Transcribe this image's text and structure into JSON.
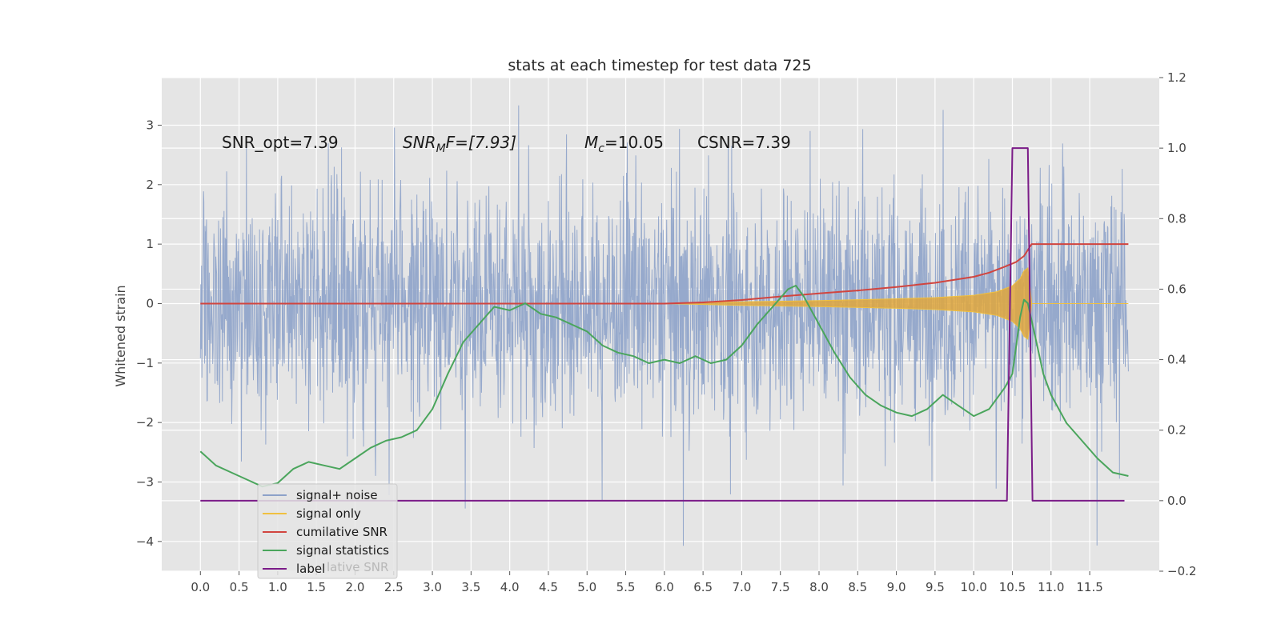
{
  "chart_data": {
    "type": "line",
    "title": "stats at each timestep for test data 725",
    "ylabel": "Whitened strain",
    "xlabel": "",
    "xlim": [
      -0.5,
      12.4
    ],
    "ylim": [
      -4.5,
      3.8
    ],
    "y2lim": [
      -0.2,
      1.2
    ],
    "grid": true,
    "legend_position": "lower-left",
    "x_ticks": [
      "0.0",
      "0.5",
      "1.0",
      "1.5",
      "2.0",
      "2.5",
      "3.0",
      "3.5",
      "4.0",
      "4.5",
      "5.0",
      "5.5",
      "6.0",
      "6.5",
      "7.0",
      "7.5",
      "8.0",
      "8.5",
      "9.0",
      "9.5",
      "10.0",
      "10.5",
      "11.0",
      "11.5"
    ],
    "y_ticks": [
      "3",
      "2",
      "1",
      "0",
      "−1",
      "−2",
      "−3",
      "−4"
    ],
    "y2_ticks": [
      "1.2",
      "1.0",
      "0.8",
      "0.6",
      "0.4",
      "0.2",
      "0.0",
      "−0.2"
    ],
    "annotations": {
      "snr_opt": "SNR_opt=7.39",
      "snr_mf_main": "SNR",
      "snr_mf_sub": "M",
      "snr_mf_rest": "F=[7.93]",
      "mc_main": "M",
      "mc_sub": "c",
      "mc_rest": "=10.05",
      "csnr": "CSNR=7.39"
    },
    "legend": [
      {
        "label": "signal+ noise",
        "color": "#8da2c9"
      },
      {
        "label": "signal only",
        "color": "#f0c040"
      },
      {
        "label": "cumilative SNR",
        "color": "#d1453f"
      },
      {
        "label": "signal statistics",
        "color": "#4aa55c"
      },
      {
        "label": "label",
        "color": "#7b1c88"
      }
    ],
    "legend_ghost": "lative SNR",
    "series": [
      {
        "name": "cumilative SNR",
        "axis": "left",
        "color": "#d1453f",
        "x": [
          0.0,
          6.0,
          6.5,
          7.0,
          7.5,
          8.0,
          8.5,
          9.0,
          9.5,
          10.0,
          10.2,
          10.4,
          10.55,
          10.65,
          10.7,
          10.75,
          11.0,
          11.5,
          12.0
        ],
        "values": [
          0.0,
          0.0,
          0.02,
          0.06,
          0.12,
          0.17,
          0.22,
          0.28,
          0.35,
          0.45,
          0.52,
          0.62,
          0.7,
          0.8,
          0.9,
          1.0,
          1.0,
          1.0,
          1.0
        ]
      },
      {
        "name": "signal statistics",
        "axis": "right",
        "color": "#4aa55c",
        "x": [
          0.0,
          0.2,
          0.4,
          0.6,
          0.8,
          1.0,
          1.2,
          1.4,
          1.6,
          1.8,
          2.0,
          2.2,
          2.4,
          2.6,
          2.8,
          3.0,
          3.2,
          3.4,
          3.6,
          3.8,
          4.0,
          4.2,
          4.4,
          4.6,
          4.8,
          5.0,
          5.2,
          5.4,
          5.6,
          5.8,
          6.0,
          6.2,
          6.4,
          6.6,
          6.8,
          7.0,
          7.2,
          7.4,
          7.6,
          7.7,
          7.8,
          8.0,
          8.2,
          8.4,
          8.6,
          8.8,
          9.0,
          9.2,
          9.4,
          9.6,
          9.8,
          10.0,
          10.2,
          10.4,
          10.5,
          10.6,
          10.65,
          10.7,
          10.8,
          10.9,
          11.0,
          11.2,
          11.4,
          11.6,
          11.8,
          12.0
        ],
        "values": [
          0.14,
          0.1,
          0.08,
          0.06,
          0.04,
          0.05,
          0.09,
          0.11,
          0.1,
          0.09,
          0.12,
          0.15,
          0.17,
          0.18,
          0.2,
          0.26,
          0.36,
          0.45,
          0.5,
          0.55,
          0.54,
          0.56,
          0.53,
          0.52,
          0.5,
          0.48,
          0.44,
          0.42,
          0.41,
          0.39,
          0.4,
          0.39,
          0.41,
          0.39,
          0.4,
          0.44,
          0.5,
          0.55,
          0.6,
          0.61,
          0.58,
          0.5,
          0.42,
          0.35,
          0.3,
          0.27,
          0.25,
          0.24,
          0.26,
          0.3,
          0.27,
          0.24,
          0.26,
          0.32,
          0.36,
          0.52,
          0.57,
          0.56,
          0.46,
          0.36,
          0.3,
          0.22,
          0.17,
          0.12,
          0.08,
          0.07
        ]
      },
      {
        "name": "label",
        "axis": "right",
        "color": "#7b1c88",
        "x": [
          0.0,
          10.43,
          10.5,
          10.7,
          10.76,
          11.95
        ],
        "values": [
          0.0,
          0.0,
          1.0,
          1.0,
          0.0,
          0.0
        ]
      }
    ],
    "noise": {
      "name": "signal+ noise",
      "x_range": [
        0.0,
        12.0
      ],
      "typical_range": [
        -1.8,
        2.2
      ],
      "extreme_min": -4.1,
      "extreme_max": 3.4
    },
    "signal_only": {
      "name": "signal only",
      "envelope_x": [
        6.0,
        7.0,
        8.0,
        9.0,
        9.5,
        10.0,
        10.3,
        10.5,
        10.6,
        10.65,
        10.7,
        10.72,
        10.75,
        12.0
      ],
      "envelope_amp": [
        0.0,
        0.03,
        0.05,
        0.08,
        0.1,
        0.14,
        0.2,
        0.3,
        0.42,
        0.55,
        0.6,
        0.4,
        0.0,
        0.0
      ]
    }
  }
}
